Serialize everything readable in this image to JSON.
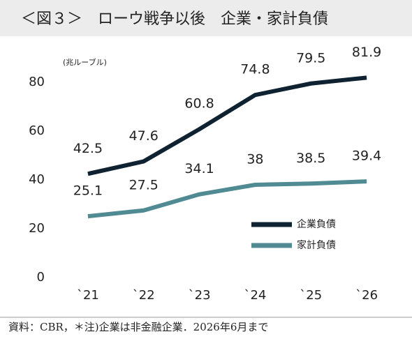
{
  "chart_data": {
    "type": "line",
    "title": "＜図３＞　ローウ戦争以後　企業・家計負債",
    "y_label": "(兆ルーブル)",
    "categories": [
      "`21",
      "`22",
      "`23",
      "`24",
      "`25",
      "`26"
    ],
    "series": [
      {
        "name": "企業負債",
        "color": "#0e2232",
        "values": [
          42.5,
          47.6,
          60.8,
          74.8,
          79.5,
          81.9
        ]
      },
      {
        "name": "家計負債",
        "color": "#508a93",
        "values": [
          25.1,
          27.5,
          34.1,
          38,
          38.5,
          39.4
        ]
      }
    ],
    "ylim": [
      0,
      80
    ],
    "yticks": [
      0,
      20,
      40,
      60,
      80
    ],
    "grid": false,
    "legend": "right",
    "note": "資料：CBR，＊注)企業は非金融企業．2026年6月まで"
  }
}
